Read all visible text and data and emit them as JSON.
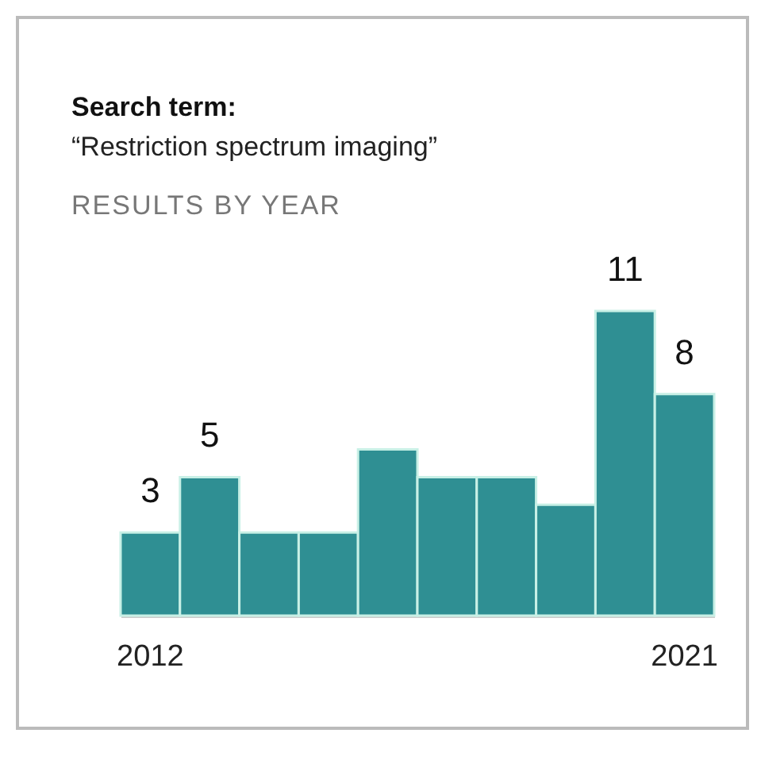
{
  "chart_data": {
    "type": "bar",
    "title": "Search term:",
    "subtitle": "“Restriction spectrum imaging”",
    "annotations": [
      "RESULTS BY YEAR"
    ],
    "categories": [
      "2012",
      null,
      null,
      null,
      null,
      null,
      null,
      null,
      null,
      "2021"
    ],
    "values": [
      3,
      5,
      3,
      3,
      6,
      5,
      5,
      4,
      11,
      8
    ],
    "value_labels": [
      "3",
      "5",
      null,
      null,
      null,
      null,
      null,
      null,
      "11",
      "8"
    ],
    "color": "#2f8f93"
  }
}
